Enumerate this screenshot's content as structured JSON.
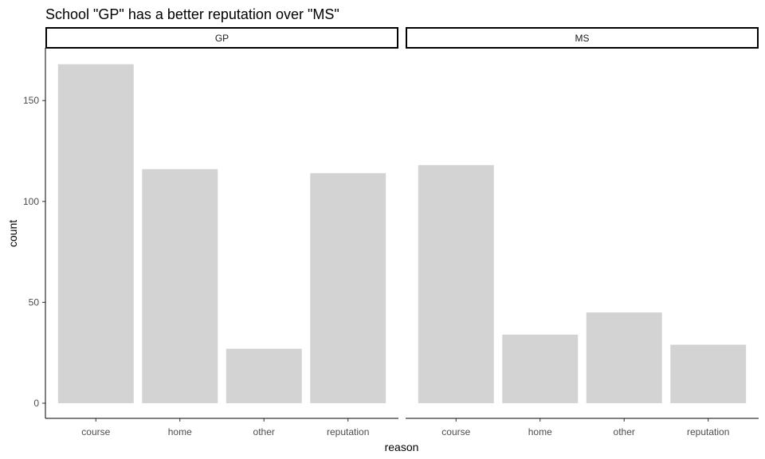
{
  "chart_data": {
    "type": "bar",
    "title": "School \"GP\" has a better reputation over \"MS\"",
    "xlabel": "reason",
    "ylabel": "count",
    "categories": [
      "course",
      "home",
      "other",
      "reputation"
    ],
    "ylim": [
      0,
      175
    ],
    "yticks": [
      "0",
      "50",
      "100",
      "150"
    ],
    "grid": false,
    "bar_color": "#d3d3d3",
    "facets": [
      {
        "name": "GP",
        "values": [
          168,
          116,
          27,
          114
        ]
      },
      {
        "name": "MS",
        "values": [
          118,
          34,
          45,
          29
        ]
      }
    ]
  }
}
